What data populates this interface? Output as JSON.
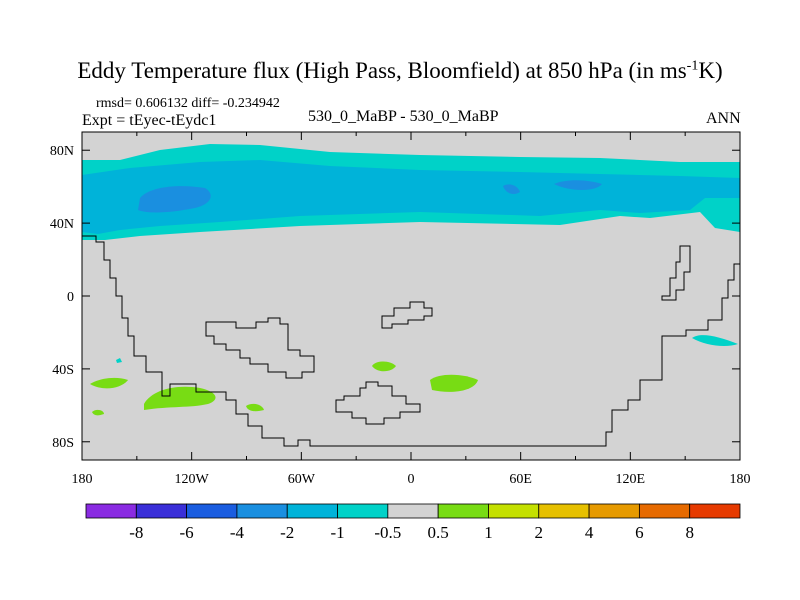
{
  "chart_data": {
    "type": "heatmap",
    "title_main": "Eddy Temperature flux (High Pass, Bloomfield) at 850 hPa (in ms",
    "title_sup": "-1",
    "title_end": "K)",
    "stats_line": "rmsd= 0.606132 diff= -0.234942",
    "expt_line": "Expt = tEyec-tEydc1",
    "center_label": "530_0_MaBP - 530_0_MaBP",
    "right_label": "ANN",
    "x_ticks": [
      "180",
      "120W",
      "60W",
      "0",
      "60E",
      "120E",
      "180"
    ],
    "x_tick_values": [
      -180,
      -120,
      -60,
      0,
      60,
      120,
      180
    ],
    "y_ticks": [
      "80N",
      "40N",
      "0",
      "40S",
      "80S"
    ],
    "y_tick_values": [
      80,
      40,
      0,
      -40,
      -80
    ],
    "xlim": [
      -180,
      180
    ],
    "ylim": [
      -90,
      90
    ],
    "colorbar": {
      "colors": [
        "#8a2be2",
        "#3a2fd8",
        "#1a5de0",
        "#1a8fe0",
        "#00b3d9",
        "#00d2c8",
        "#d3d3d3",
        "#78dc14",
        "#c4e000",
        "#e6c000",
        "#e69a00",
        "#e66a00",
        "#e63a00"
      ],
      "labels": [
        "-8",
        "-6",
        "-4",
        "-2",
        "-1",
        "-0.5",
        "0.5",
        "1",
        "2",
        "4",
        "6",
        "8"
      ]
    },
    "background_value_range": "-0.5 to 0.5",
    "regions": [
      {
        "name": "northern-band-weak-negative",
        "range": "-1 to -0.5"
      },
      {
        "name": "northern-band-negative",
        "range": "-2 to -1"
      },
      {
        "name": "northern-core-stronger-negative",
        "range": "-4 to -2"
      },
      {
        "name": "southern-patches-positive",
        "range": "0.5 to 1"
      }
    ]
  },
  "colors": {
    "background": "#d3d3d3",
    "weak_negative": "#00d2c8",
    "negative": "#00b3d9",
    "stronger_negative": "#1a8fe0",
    "positive": "#78dc14"
  }
}
